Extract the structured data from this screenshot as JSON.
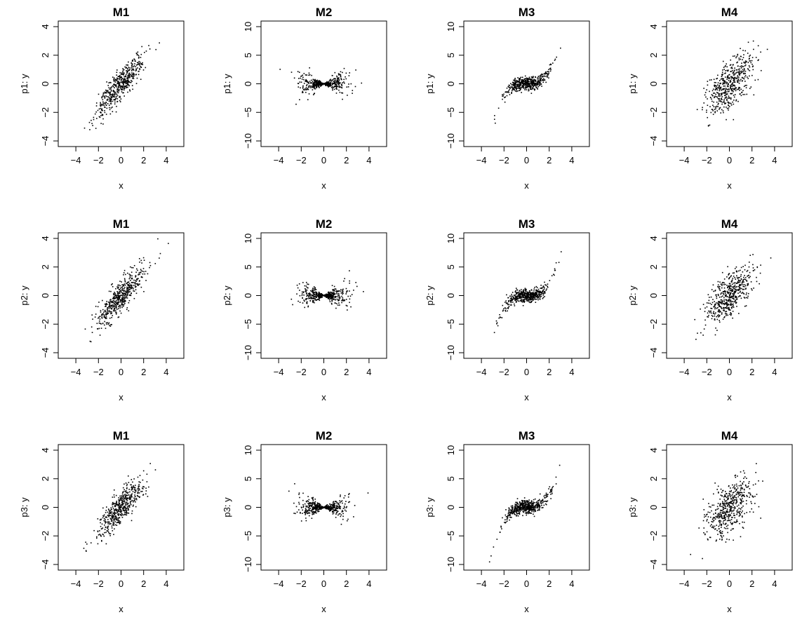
{
  "chart_data": [
    {
      "type": "scatter",
      "title": "M1",
      "xlabel": "x",
      "ylabel": "p1: y",
      "xlim": [
        -5,
        5
      ],
      "ylim": [
        -4,
        4
      ],
      "xticks": [
        "−4",
        "−2",
        "0",
        "2",
        "4"
      ],
      "yticks": [
        "−4",
        "−2",
        "0",
        "2",
        "4"
      ],
      "grid": false,
      "model": "M1",
      "n_points": 500,
      "seed": 101
    },
    {
      "type": "scatter",
      "title": "M2",
      "xlabel": "x",
      "ylabel": "p1: y",
      "xlim": [
        -5,
        5
      ],
      "ylim": [
        -10,
        10
      ],
      "xticks": [
        "−4",
        "−2",
        "0",
        "2",
        "4"
      ],
      "yticks": [
        "−10",
        "−5",
        "0",
        "5",
        "10"
      ],
      "grid": false,
      "model": "M2",
      "n_points": 500,
      "seed": 102
    },
    {
      "type": "scatter",
      "title": "M3",
      "xlabel": "x",
      "ylabel": "p1: y",
      "xlim": [
        -5,
        5
      ],
      "ylim": [
        -10,
        10
      ],
      "xticks": [
        "−4",
        "−2",
        "0",
        "2",
        "4"
      ],
      "yticks": [
        "−10",
        "−5",
        "0",
        "5",
        "10"
      ],
      "grid": false,
      "model": "M3",
      "n_points": 500,
      "seed": 103
    },
    {
      "type": "scatter",
      "title": "M4",
      "xlabel": "x",
      "ylabel": "p1: y",
      "xlim": [
        -5,
        5
      ],
      "ylim": [
        -4,
        4
      ],
      "xticks": [
        "−4",
        "−2",
        "0",
        "2",
        "4"
      ],
      "yticks": [
        "−4",
        "−2",
        "0",
        "2",
        "4"
      ],
      "grid": false,
      "model": "M4",
      "n_points": 500,
      "seed": 104
    },
    {
      "type": "scatter",
      "title": "M1",
      "xlabel": "x",
      "ylabel": "p2: y",
      "xlim": [
        -5,
        5
      ],
      "ylim": [
        -4,
        4
      ],
      "xticks": [
        "−4",
        "−2",
        "0",
        "2",
        "4"
      ],
      "yticks": [
        "−4",
        "−2",
        "0",
        "2",
        "4"
      ],
      "grid": false,
      "model": "M1",
      "n_points": 500,
      "seed": 201
    },
    {
      "type": "scatter",
      "title": "M2",
      "xlabel": "x",
      "ylabel": "p2: y",
      "xlim": [
        -5,
        5
      ],
      "ylim": [
        -10,
        10
      ],
      "xticks": [
        "−4",
        "−2",
        "0",
        "2",
        "4"
      ],
      "yticks": [
        "−10",
        "−5",
        "0",
        "5",
        "10"
      ],
      "grid": false,
      "model": "M2",
      "n_points": 500,
      "seed": 202
    },
    {
      "type": "scatter",
      "title": "M3",
      "xlabel": "x",
      "ylabel": "p2: y",
      "xlim": [
        -5,
        5
      ],
      "ylim": [
        -10,
        10
      ],
      "xticks": [
        "−4",
        "−2",
        "0",
        "2",
        "4"
      ],
      "yticks": [
        "−10",
        "−5",
        "0",
        "5",
        "10"
      ],
      "grid": false,
      "model": "M3",
      "n_points": 500,
      "seed": 203
    },
    {
      "type": "scatter",
      "title": "M4",
      "xlabel": "x",
      "ylabel": "p2: y",
      "xlim": [
        -5,
        5
      ],
      "ylim": [
        -4,
        4
      ],
      "xticks": [
        "−4",
        "−2",
        "0",
        "2",
        "4"
      ],
      "yticks": [
        "−4",
        "−2",
        "0",
        "2",
        "4"
      ],
      "grid": false,
      "model": "M4",
      "n_points": 500,
      "seed": 204
    },
    {
      "type": "scatter",
      "title": "M1",
      "xlabel": "x",
      "ylabel": "p3: y",
      "xlim": [
        -5,
        5
      ],
      "ylim": [
        -4,
        4
      ],
      "xticks": [
        "−4",
        "−2",
        "0",
        "2",
        "4"
      ],
      "yticks": [
        "−4",
        "−2",
        "0",
        "2",
        "4"
      ],
      "grid": false,
      "model": "M1",
      "n_points": 500,
      "seed": 301
    },
    {
      "type": "scatter",
      "title": "M2",
      "xlabel": "x",
      "ylabel": "p3: y",
      "xlim": [
        -5,
        5
      ],
      "ylim": [
        -10,
        10
      ],
      "xticks": [
        "−4",
        "−2",
        "0",
        "2",
        "4"
      ],
      "yticks": [
        "−10",
        "−5",
        "0",
        "5",
        "10"
      ],
      "grid": false,
      "model": "M2",
      "n_points": 500,
      "seed": 302
    },
    {
      "type": "scatter",
      "title": "M3",
      "xlabel": "x",
      "ylabel": "p3: y",
      "xlim": [
        -5,
        5
      ],
      "ylim": [
        -10,
        10
      ],
      "xticks": [
        "−4",
        "−2",
        "0",
        "2",
        "4"
      ],
      "yticks": [
        "−10",
        "−5",
        "0",
        "5",
        "10"
      ],
      "grid": false,
      "model": "M3",
      "n_points": 500,
      "seed": 303
    },
    {
      "type": "scatter",
      "title": "M4",
      "xlabel": "x",
      "ylabel": "p3: y",
      "xlim": [
        -5,
        5
      ],
      "ylim": [
        -4,
        4
      ],
      "xticks": [
        "−4",
        "−2",
        "0",
        "2",
        "4"
      ],
      "yticks": [
        "−4",
        "−2",
        "0",
        "2",
        "4"
      ],
      "grid": false,
      "model": "M4",
      "n_points": 500,
      "seed": 304
    }
  ],
  "colors": {
    "points": "#000000",
    "axes": "#000000",
    "background": "#ffffff"
  }
}
